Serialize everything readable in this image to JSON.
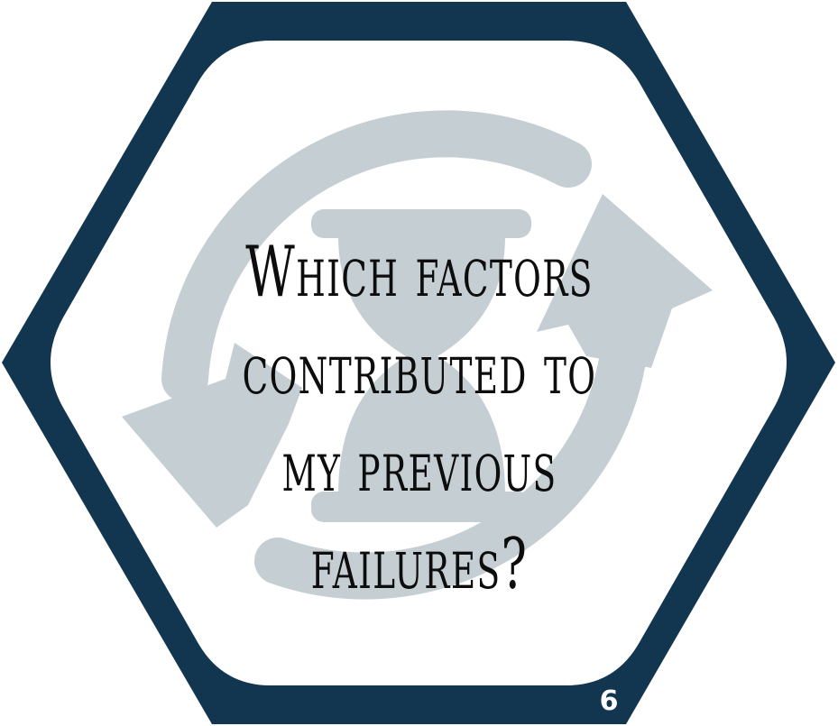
{
  "card": {
    "question": "Which factors contributed to my previous failures?",
    "number": "6",
    "icon": "cycle-hourglass-icon",
    "colors": {
      "frame": "#12364f",
      "icon": "#c5ced3",
      "text": "#0d0d0d",
      "number": "#ffffff"
    }
  }
}
